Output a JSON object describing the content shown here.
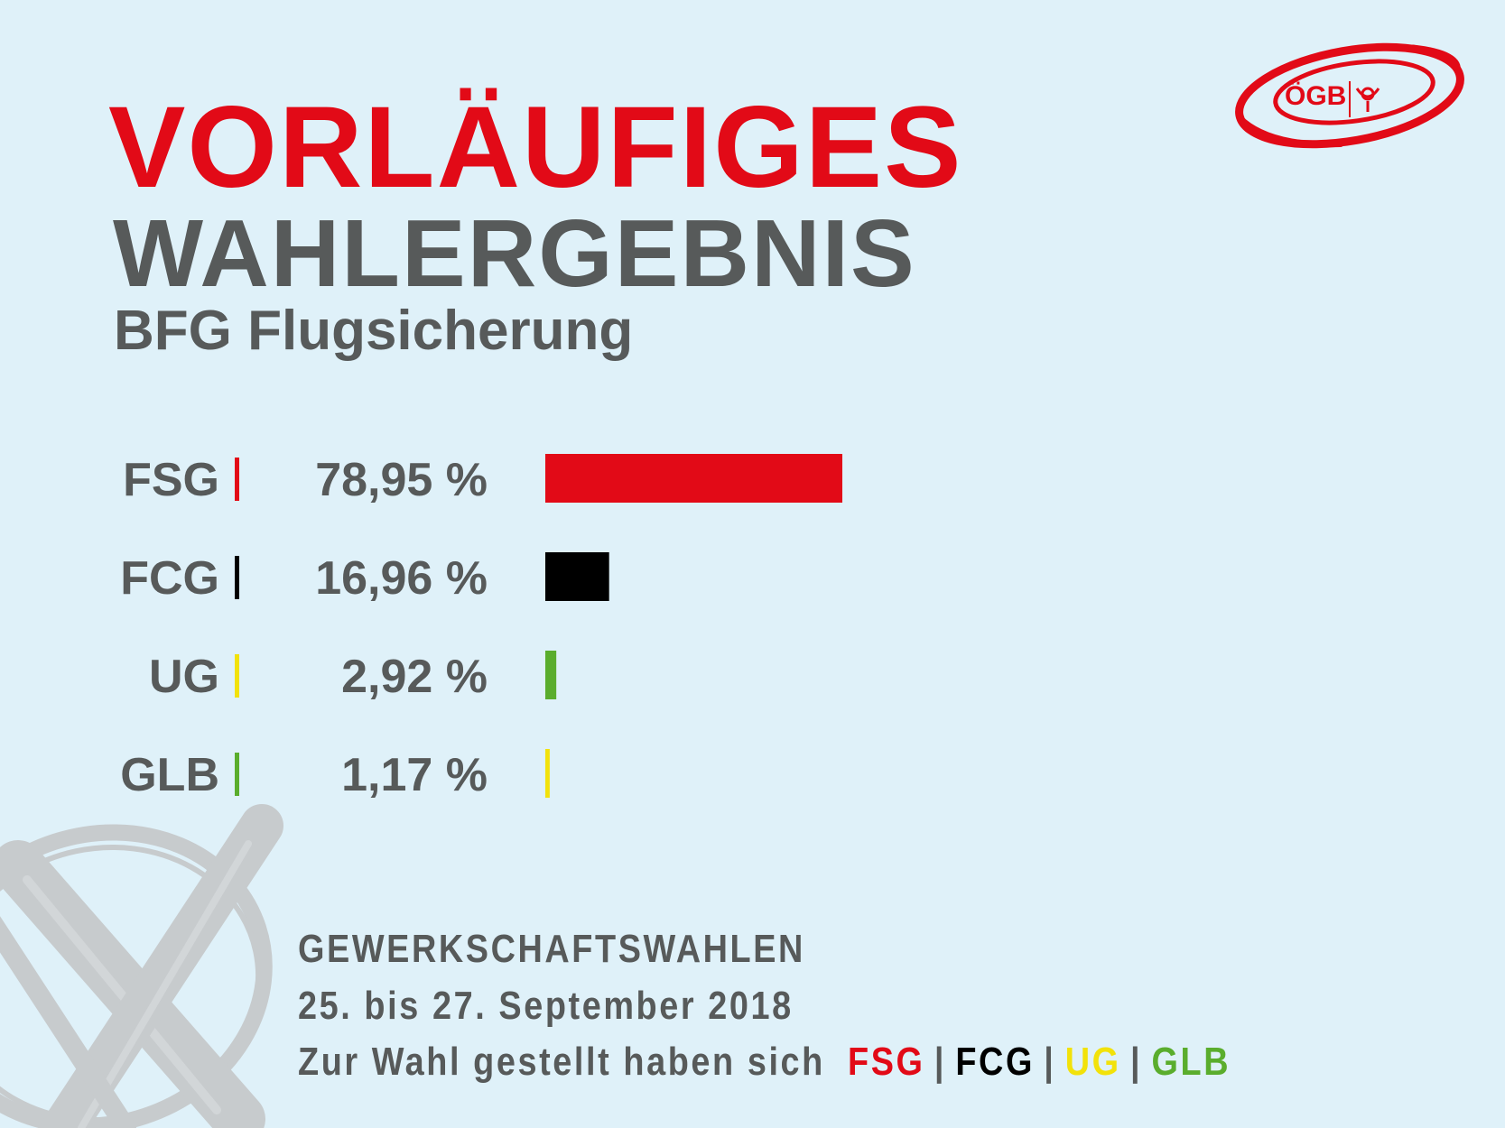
{
  "header": {
    "title_line1": "VORLÄUFIGES",
    "title_line2": "WAHLERGEBNIS",
    "subtitle": "BFG Flugsicherung"
  },
  "logo": {
    "text": "ÖGB",
    "color": "#e20a17"
  },
  "footer": {
    "line1": "GEWERKSCHAFTSWAHLEN",
    "line2": "25. bis 27. September 2018",
    "line3_prefix": "Zur Wahl gestellt haben sich",
    "parties": [
      {
        "name": "FSG",
        "color": "#e20a17"
      },
      {
        "name": "FCG",
        "color": "#000000"
      },
      {
        "name": "UG",
        "color": "#f2e20a"
      },
      {
        "name": "GLB",
        "color": "#5aad2d"
      }
    ],
    "separator": "|"
  },
  "chart_data": {
    "type": "bar",
    "orientation": "horizontal",
    "categories": [
      "FSG",
      "FCG",
      "UG",
      "GLB"
    ],
    "values": [
      78.95,
      16.96,
      2.92,
      1.17
    ],
    "value_labels": [
      "78,95 %",
      "16,96 %",
      "2,92 %",
      "1,17 %"
    ],
    "label_bar_colors": [
      "#e20a17",
      "#000000",
      "#f2e20a",
      "#5aad2d"
    ],
    "bar_colors": [
      "#e20a17",
      "#000000",
      "#5aad2d",
      "#f2e20a"
    ],
    "unit": "%"
  }
}
